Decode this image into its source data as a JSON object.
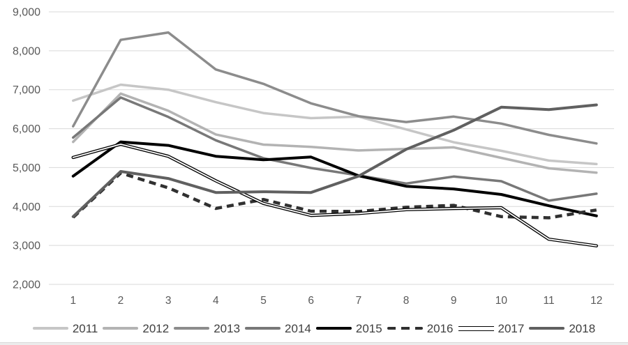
{
  "chart_data": {
    "type": "line",
    "title": "",
    "x": [
      1,
      2,
      3,
      4,
      5,
      6,
      7,
      8,
      9,
      10,
      11,
      12
    ],
    "x_axis": {
      "tick_labels": [
        "1",
        "2",
        "3",
        "4",
        "5",
        "6",
        "7",
        "8",
        "9",
        "10",
        "11",
        "12"
      ]
    },
    "y_axis": {
      "min": 2000,
      "max": 9000,
      "step": 1000,
      "tick_values": [
        9000,
        8000,
        7000,
        6000,
        5000,
        4000,
        3000,
        2000
      ],
      "tick_labels": [
        "9,000",
        "8,000",
        "7,000",
        "6,000",
        "5,000",
        "4,000",
        "3,000",
        "2,000"
      ]
    },
    "grid": "horizontal",
    "legend_position": "bottom",
    "colors": {
      "background": "#ffffff",
      "gridline": "#d9d9d9",
      "axis_label": "#595959",
      "legend_text": "#3f3f3f"
    },
    "series": [
      {
        "name": "2011",
        "color": "#c6c6c6",
        "style": "solid",
        "width": 3.5,
        "values": [
          6720,
          7130,
          7000,
          6680,
          6400,
          6270,
          6310,
          5980,
          5650,
          5430,
          5180,
          5090
        ]
      },
      {
        "name": "2012",
        "color": "#b3b3b3",
        "style": "solid",
        "width": 3.5,
        "values": [
          5660,
          6900,
          6460,
          5850,
          5590,
          5530,
          5440,
          5480,
          5520,
          5250,
          4980,
          4870
        ]
      },
      {
        "name": "2013",
        "color": "#8c8c8c",
        "style": "solid",
        "width": 3.5,
        "values": [
          6060,
          8280,
          8470,
          7520,
          7150,
          6650,
          6320,
          6170,
          6310,
          6130,
          5840,
          5620
        ]
      },
      {
        "name": "2014",
        "color": "#787878",
        "style": "solid",
        "width": 3.5,
        "values": [
          5770,
          6800,
          6300,
          5700,
          5240,
          4990,
          4800,
          4590,
          4770,
          4650,
          4150,
          4330
        ]
      },
      {
        "name": "2015",
        "color": "#000000",
        "style": "solid",
        "width": 4,
        "values": [
          4780,
          5660,
          5570,
          5290,
          5200,
          5270,
          4790,
          4520,
          4450,
          4310,
          4020,
          3760
        ]
      },
      {
        "name": "2016",
        "color": "#303030",
        "style": "dashed",
        "width": 4.5,
        "values": [
          3720,
          4860,
          4480,
          3950,
          4180,
          3880,
          3870,
          3980,
          4030,
          3740,
          3710,
          3910
        ]
      },
      {
        "name": "2017",
        "color": "#000000",
        "style": "double",
        "width": 4.5,
        "values": [
          5260,
          5600,
          5290,
          4660,
          4080,
          3770,
          3820,
          3920,
          3950,
          3970,
          3160,
          2990
        ]
      },
      {
        "name": "2018",
        "color": "#606060",
        "style": "solid",
        "width": 4,
        "values": [
          3740,
          4900,
          4720,
          4360,
          4380,
          4360,
          4780,
          5470,
          5960,
          6550,
          6490,
          6610
        ]
      }
    ],
    "legend_entries": [
      "2011",
      "2012",
      "2013",
      "2014",
      "2015",
      "2016",
      "2017",
      "2018"
    ]
  }
}
